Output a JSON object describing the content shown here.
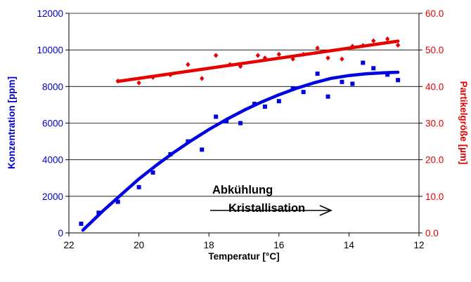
{
  "chart_data": {
    "type": "scatter",
    "xlabel": "Temperatur [°C]",
    "ylabel_left": "Konzentration [ppm]",
    "ylabel_right": "Partikelgröße [µm]",
    "x_reversed": true,
    "xlim": [
      22,
      12
    ],
    "ylim_left": [
      0,
      12000
    ],
    "ylim_right": [
      0,
      60
    ],
    "x_ticks": [
      "22",
      "20",
      "18",
      "16",
      "14",
      "12"
    ],
    "y_left_ticks": [
      "0",
      "2000",
      "4000",
      "6000",
      "8000",
      "10000",
      "12000"
    ],
    "y_right_ticks": [
      "0.0",
      "10.0",
      "20.0",
      "30.0",
      "40.0",
      "50.0",
      "60.0"
    ],
    "grid": "horizontal",
    "colors": {
      "concentration": "#0000e0",
      "particle": "#e60000",
      "arrow": "#000000"
    },
    "series": [
      {
        "axis": "left",
        "marker": "square",
        "color": "#0000e0",
        "points": [
          [
            21.65,
            500
          ],
          [
            21.15,
            1100
          ],
          [
            20.6,
            1700
          ],
          [
            20.0,
            2500
          ],
          [
            19.6,
            3300
          ],
          [
            19.1,
            4300
          ],
          [
            18.6,
            5000
          ],
          [
            18.2,
            4550
          ],
          [
            17.8,
            6350
          ],
          [
            17.5,
            6100
          ],
          [
            17.1,
            6000
          ],
          [
            16.7,
            7050
          ],
          [
            16.4,
            6900
          ],
          [
            16.0,
            7200
          ],
          [
            15.6,
            7900
          ],
          [
            15.3,
            7700
          ],
          [
            14.9,
            8700
          ],
          [
            14.6,
            7450
          ],
          [
            14.2,
            8250
          ],
          [
            13.9,
            8150
          ],
          [
            13.6,
            9300
          ],
          [
            13.3,
            9000
          ],
          [
            12.9,
            8650
          ],
          [
            12.6,
            8350
          ]
        ]
      },
      {
        "axis": "left",
        "type": "trendline",
        "color": "#0000e0",
        "points": [
          [
            21.6,
            150
          ],
          [
            21.0,
            1250
          ],
          [
            20.5,
            2100
          ],
          [
            20.0,
            2950
          ],
          [
            19.5,
            3700
          ],
          [
            19.0,
            4400
          ],
          [
            18.5,
            5050
          ],
          [
            18.0,
            5650
          ],
          [
            17.5,
            6200
          ],
          [
            17.0,
            6700
          ],
          [
            16.5,
            7150
          ],
          [
            16.0,
            7550
          ],
          [
            15.5,
            7900
          ],
          [
            15.0,
            8200
          ],
          [
            14.5,
            8450
          ],
          [
            14.0,
            8600
          ],
          [
            13.5,
            8700
          ],
          [
            13.0,
            8750
          ],
          [
            12.6,
            8780
          ]
        ]
      },
      {
        "axis": "right",
        "marker": "diamond",
        "color": "#e60000",
        "points": [
          [
            20.6,
            41.5
          ],
          [
            20.0,
            41.0
          ],
          [
            19.6,
            42.5
          ],
          [
            19.1,
            43.2
          ],
          [
            18.6,
            46.0
          ],
          [
            18.2,
            42.2
          ],
          [
            17.8,
            48.5
          ],
          [
            17.4,
            46.0
          ],
          [
            17.1,
            45.5
          ],
          [
            16.6,
            48.5
          ],
          [
            16.4,
            47.8
          ],
          [
            16.0,
            48.8
          ],
          [
            15.6,
            47.5
          ],
          [
            15.3,
            48.8
          ],
          [
            14.9,
            50.5
          ],
          [
            14.6,
            47.8
          ],
          [
            14.2,
            47.5
          ],
          [
            13.9,
            51.0
          ],
          [
            13.6,
            51.2
          ],
          [
            13.3,
            52.5
          ],
          [
            12.9,
            53.0
          ],
          [
            12.6,
            51.3
          ]
        ]
      },
      {
        "axis": "right",
        "type": "trendline",
        "color": "#e60000",
        "points": [
          [
            20.6,
            41.4
          ],
          [
            12.6,
            52.4
          ]
        ]
      }
    ],
    "annotations": [
      "Abkühlung",
      "Kristallisation"
    ]
  }
}
